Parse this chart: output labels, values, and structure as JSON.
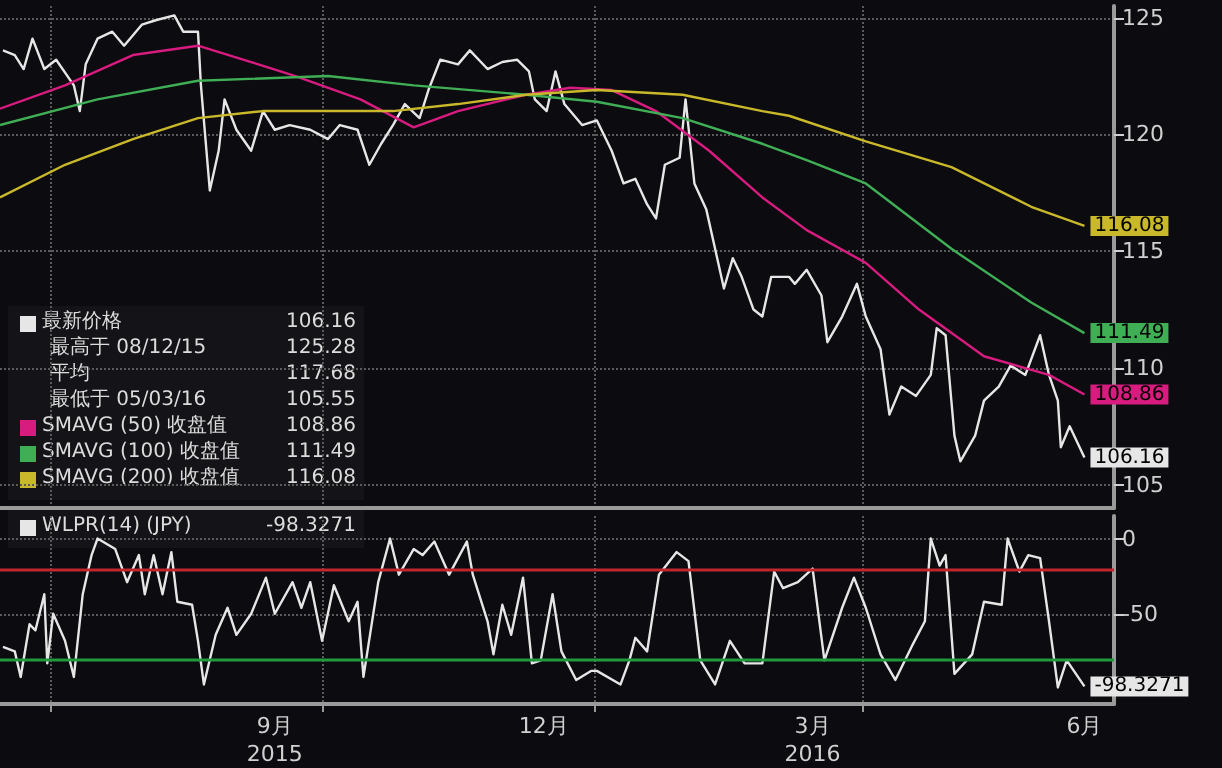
{
  "chart_data": [
    {
      "type": "line",
      "xlim": [
        "2015-06-14",
        "2016-06-25"
      ],
      "xticks": [
        {
          "value": "2015-07-01",
          "label": null
        },
        {
          "value": "2015-10-01",
          "label": null
        },
        {
          "value": "2016-01-01",
          "label": null
        },
        {
          "value": "2016-04-01",
          "label": null
        }
      ],
      "ylim": [
        104,
        125.5
      ],
      "yticks": [
        105,
        110,
        115,
        120,
        125
      ],
      "grid": true,
      "tick_labels": "y",
      "legend": "bottom left",
      "annotations": [
        "最高于 08/12/15 125.28",
        "平均 117.68",
        "最低于 05/03/16 105.55"
      ],
      "series": [
        {
          "name": "最新价格",
          "color": "#e6e6e6",
          "x": [
            "2015-06-15",
            "2015-06-19",
            "2015-06-22",
            "2015-06-25",
            "2015-06-29",
            "2015-07-03",
            "2015-07-09",
            "2015-07-11",
            "2015-07-13",
            "2015-07-17",
            "2015-07-22",
            "2015-07-26",
            "2015-08-01",
            "2015-08-06",
            "2015-08-12",
            "2015-08-15",
            "2015-08-20",
            "2015-08-21",
            "2015-08-24",
            "2015-08-27",
            "2015-08-29",
            "2015-09-02",
            "2015-09-07",
            "2015-09-11",
            "2015-09-15",
            "2015-09-20",
            "2015-09-27",
            "2015-10-03",
            "2015-10-07",
            "2015-10-13",
            "2015-10-17",
            "2015-10-21",
            "2015-10-25",
            "2015-10-29",
            "2015-11-03",
            "2015-11-06",
            "2015-11-10",
            "2015-11-16",
            "2015-11-20",
            "2015-11-26",
            "2015-12-01",
            "2015-12-06",
            "2015-12-10",
            "2015-12-12",
            "2015-12-16",
            "2015-12-19",
            "2015-12-22",
            "2015-12-28",
            "2016-01-02",
            "2016-01-07",
            "2016-01-11",
            "2016-01-15",
            "2016-01-19",
            "2016-01-22",
            "2016-01-25",
            "2016-01-30",
            "2016-02-01",
            "2016-02-04",
            "2016-02-08",
            "2016-02-11",
            "2016-02-14",
            "2016-02-17",
            "2016-02-20",
            "2016-02-24",
            "2016-02-27",
            "2016-03-01",
            "2016-03-07",
            "2016-03-09",
            "2016-03-13",
            "2016-03-18",
            "2016-03-20",
            "2016-03-25",
            "2016-03-30",
            "2016-04-02",
            "2016-04-07",
            "2016-04-10",
            "2016-04-14",
            "2016-04-19",
            "2016-04-24",
            "2016-04-26",
            "2016-04-29",
            "2016-05-02",
            "2016-05-04",
            "2016-05-09",
            "2016-05-12",
            "2016-05-17",
            "2016-05-21",
            "2016-05-26",
            "2016-05-31",
            "2016-06-03",
            "2016-06-06",
            "2016-06-07",
            "2016-06-10",
            "2016-06-15"
          ],
          "values": [
            123.6,
            123.4,
            122.8,
            124.1,
            122.8,
            123.2,
            122.1,
            121.0,
            123.0,
            124.1,
            124.4,
            123.8,
            124.7,
            124.9,
            125.1,
            124.4,
            124.4,
            122.1,
            117.6,
            119.3,
            121.5,
            120.2,
            119.3,
            121.0,
            120.2,
            120.4,
            120.2,
            119.8,
            120.4,
            120.2,
            118.7,
            119.6,
            120.4,
            121.3,
            120.7,
            121.9,
            123.2,
            123.0,
            123.6,
            122.8,
            123.1,
            123.2,
            122.7,
            121.5,
            121.0,
            122.7,
            121.3,
            120.4,
            120.6,
            119.3,
            117.9,
            118.1,
            117.0,
            116.4,
            118.7,
            119.0,
            121.5,
            117.9,
            116.8,
            115.1,
            113.4,
            114.7,
            113.9,
            112.5,
            112.2,
            113.9,
            113.9,
            113.6,
            114.2,
            113.1,
            111.1,
            112.2,
            113.6,
            112.2,
            110.8,
            108.0,
            109.2,
            108.8,
            109.7,
            111.7,
            111.4,
            107.1,
            106.0,
            107.1,
            108.6,
            109.2,
            110.1,
            109.7,
            111.4,
            109.7,
            108.6,
            106.6,
            107.5,
            106.16
          ],
          "value_labels": [
            null,
            null,
            null,
            null,
            null,
            null,
            null,
            null,
            null,
            null,
            null,
            null,
            null,
            null,
            null,
            null,
            null,
            null,
            null,
            null,
            null,
            null,
            null,
            null,
            null,
            null,
            null,
            null,
            null,
            null,
            null,
            null,
            null,
            null,
            null,
            null,
            null,
            null,
            null,
            null,
            null,
            null,
            null,
            null,
            null,
            null,
            null,
            null,
            null,
            null,
            null,
            null,
            null,
            null,
            null,
            null,
            null,
            null,
            null,
            null,
            null,
            null,
            null,
            null,
            null,
            null,
            null,
            null,
            null,
            null,
            null,
            null,
            null,
            null,
            null,
            null,
            null,
            null,
            null,
            null,
            null,
            null,
            null,
            null,
            null,
            null,
            null,
            null,
            null,
            null,
            null,
            null,
            null,
            "106.16"
          ]
        },
        {
          "name": "SMAVG (50) 收盘值",
          "color": "#d81b7f",
          "x": [
            "2015-06-14",
            "2015-07-06",
            "2015-07-29",
            "2015-08-20",
            "2015-09-07",
            "2015-09-22",
            "2015-10-14",
            "2015-11-01",
            "2015-11-16",
            "2015-12-09",
            "2015-12-24",
            "2016-01-07",
            "2016-01-22",
            "2016-02-09",
            "2016-02-27",
            "2016-03-13",
            "2016-04-02",
            "2016-04-20",
            "2016-05-12",
            "2016-06-03",
            "2016-06-15"
          ],
          "values": [
            121.1,
            122.1,
            123.4,
            123.8,
            123.1,
            122.5,
            121.5,
            120.3,
            121.0,
            121.7,
            122.0,
            121.9,
            121.0,
            119.3,
            117.3,
            115.9,
            114.5,
            112.5,
            110.5,
            109.7,
            108.86
          ],
          "value_labels": [
            null,
            null,
            null,
            null,
            null,
            null,
            null,
            null,
            null,
            null,
            null,
            null,
            null,
            null,
            null,
            null,
            null,
            null,
            null,
            null,
            "108.86"
          ]
        },
        {
          "name": "SMAVG (100) 收盘值",
          "color": "#3fae55",
          "x": [
            "2015-06-14",
            "2015-07-17",
            "2015-08-20",
            "2015-10-03",
            "2015-11-01",
            "2015-12-09",
            "2016-01-02",
            "2016-01-31",
            "2016-02-27",
            "2016-03-13",
            "2016-04-02",
            "2016-05-01",
            "2016-05-28",
            "2016-06-15"
          ],
          "values": [
            120.4,
            121.5,
            122.3,
            122.5,
            122.1,
            121.7,
            121.4,
            120.7,
            119.6,
            118.9,
            117.9,
            115.1,
            112.8,
            111.49
          ],
          "value_labels": [
            null,
            null,
            null,
            null,
            null,
            null,
            null,
            null,
            null,
            null,
            null,
            null,
            null,
            "111.49"
          ]
        },
        {
          "name": "SMAVG (200) 收盘值",
          "color": "#c9b82a",
          "x": [
            "2015-06-14",
            "2015-07-06",
            "2015-07-29",
            "2015-08-20",
            "2015-09-11",
            "2015-10-25",
            "2015-11-16",
            "2015-12-09",
            "2016-01-02",
            "2016-01-31",
            "2016-02-27",
            "2016-03-07",
            "2016-04-02",
            "2016-05-01",
            "2016-05-28",
            "2016-06-15"
          ],
          "values": [
            117.3,
            118.7,
            119.8,
            120.7,
            121.0,
            121.0,
            121.3,
            121.7,
            121.9,
            121.7,
            121.0,
            120.8,
            119.7,
            118.6,
            116.9,
            116.08
          ],
          "value_labels": [
            null,
            null,
            null,
            null,
            null,
            null,
            null,
            null,
            null,
            null,
            null,
            null,
            null,
            null,
            null,
            "116.08"
          ]
        }
      ]
    },
    {
      "type": "line",
      "xlim": [
        "2015-06-14",
        "2016-06-25"
      ],
      "xticks": [
        {
          "value": "2015-07-01",
          "label": null
        },
        {
          "value": "2015-09-15",
          "label": "9月\n2015"
        },
        {
          "value": "2015-10-01",
          "label": null
        },
        {
          "value": "2015-12-15",
          "label": "12月"
        },
        {
          "value": "2016-01-01",
          "label": null
        },
        {
          "value": "2016-03-15",
          "label": "3月\n2016"
        },
        {
          "value": "2016-04-01",
          "label": null
        },
        {
          "value": "2016-06-15",
          "label": "6月"
        }
      ],
      "ylim": [
        -110,
        15
      ],
      "yticks": [
        0,
        -50
      ],
      "grid": true,
      "legend": "top left",
      "ref_lines": [
        {
          "axis": "y",
          "value": -20,
          "color": "#c0262c"
        },
        {
          "axis": "y",
          "value": -80,
          "color": "#1f9a3c"
        }
      ],
      "series": [
        {
          "name": "WLPR(14) (JPY)",
          "color": "#e6e6e6",
          "x": [
            "2015-06-15",
            "2015-06-19",
            "2015-06-21",
            "2015-06-24",
            "2015-06-26",
            "2015-06-29",
            "2015-06-30",
            "2015-07-02",
            "2015-07-06",
            "2015-07-09",
            "2015-07-12",
            "2015-07-15",
            "2015-07-17",
            "2015-07-23",
            "2015-07-27",
            "2015-07-31",
            "2015-08-02",
            "2015-08-05",
            "2015-08-08",
            "2015-08-11",
            "2015-08-13",
            "2015-08-18",
            "2015-08-20",
            "2015-08-22",
            "2015-08-26",
            "2015-08-30",
            "2015-09-02",
            "2015-09-07",
            "2015-09-12",
            "2015-09-15",
            "2015-09-21",
            "2015-09-24",
            "2015-09-27",
            "2015-10-01",
            "2015-10-05",
            "2015-10-10",
            "2015-10-13",
            "2015-10-15",
            "2015-10-20",
            "2015-10-24",
            "2015-10-27",
            "2015-11-01",
            "2015-11-04",
            "2015-11-08",
            "2015-11-13",
            "2015-11-19",
            "2015-11-21",
            "2015-11-26",
            "2015-11-28",
            "2015-12-01",
            "2015-12-04",
            "2015-12-08",
            "2015-12-11",
            "2015-12-14",
            "2015-12-18",
            "2015-12-21",
            "2015-12-26",
            "2015-12-31",
            "2016-01-02",
            "2016-01-10",
            "2016-01-13",
            "2016-01-15",
            "2016-01-19",
            "2016-01-23",
            "2016-01-29",
            "2016-02-02",
            "2016-02-06",
            "2016-02-11",
            "2016-02-16",
            "2016-02-21",
            "2016-02-27",
            "2016-03-02",
            "2016-03-05",
            "2016-03-10",
            "2016-03-15",
            "2016-03-19",
            "2016-03-25",
            "2016-03-29",
            "2016-04-02",
            "2016-04-07",
            "2016-04-12",
            "2016-04-18",
            "2016-04-22",
            "2016-04-24",
            "2016-04-27",
            "2016-04-29",
            "2016-05-02",
            "2016-05-08",
            "2016-05-12",
            "2016-05-18",
            "2016-05-20",
            "2016-05-24",
            "2016-05-27",
            "2016-05-31",
            "2016-06-03",
            "2016-06-06",
            "2016-06-09",
            "2016-06-15"
          ],
          "values": [
            -72,
            -75,
            -92,
            -57,
            -61,
            -37,
            -83,
            -50,
            -68,
            -92,
            -37,
            -11,
            0,
            -7,
            -29,
            -11,
            -37,
            -11,
            -37,
            -9,
            -42,
            -44,
            -68,
            -97,
            -64,
            -46,
            -64,
            -50,
            -26,
            -50,
            -29,
            -46,
            -29,
            -68,
            -31,
            -55,
            -42,
            -92,
            -29,
            0,
            -24,
            -7,
            -11,
            -2,
            -24,
            -2,
            -24,
            -55,
            -77,
            -44,
            -64,
            -26,
            -83,
            -81,
            -37,
            -75,
            -94,
            -88,
            -88,
            -97,
            -81,
            -66,
            -75,
            -24,
            -9,
            -15,
            -81,
            -97,
            -68,
            -83,
            -83,
            -22,
            -33,
            -29,
            -20,
            -81,
            -46,
            -26,
            -46,
            -77,
            -94,
            -70,
            -55,
            0,
            -18,
            -11,
            -90,
            -77,
            -42,
            -44,
            0,
            -22,
            -11,
            -13,
            -55,
            -99,
            -81,
            -98.3271
          ],
          "value_labels": [
            null,
            null,
            null,
            null,
            null,
            null,
            null,
            null,
            null,
            null,
            null,
            null,
            null,
            null,
            null,
            null,
            null,
            null,
            null,
            null,
            null,
            null,
            null,
            null,
            null,
            null,
            null,
            null,
            null,
            null,
            null,
            null,
            null,
            null,
            null,
            null,
            null,
            null,
            null,
            null,
            null,
            null,
            null,
            null,
            null,
            null,
            null,
            null,
            null,
            null,
            null,
            null,
            null,
            null,
            null,
            null,
            null,
            null,
            null,
            null,
            null,
            null,
            null,
            null,
            null,
            null,
            null,
            null,
            null,
            null,
            null,
            null,
            null,
            null,
            null,
            null,
            null,
            null,
            null,
            null,
            null,
            null,
            null,
            null,
            null,
            null,
            null,
            null,
            null,
            null,
            null,
            null,
            null,
            null,
            null,
            null,
            null,
            "-98.3271"
          ]
        }
      ]
    }
  ]
}
